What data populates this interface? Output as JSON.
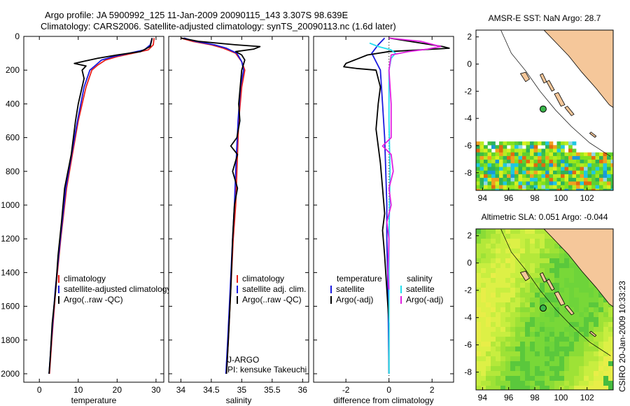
{
  "header": {
    "line1": "Argo profile: JA 5900992_125 11-Jan-2009 20090115_143 3.307S 98.639E",
    "line2": "Climatology: CARS2006. Satellite-adjusted climatology: synTS_20090113.nc (1.6d later)"
  },
  "colors": {
    "climatology": "#e8201b",
    "satellite": "#1a1adf",
    "argo": "#000000",
    "satellite_diff": "#22ddee",
    "argo_salinity_diff": "#e020e0",
    "land": "#f5c79a"
  },
  "chart_data": [
    {
      "type": "line",
      "id": "temperature",
      "xlabel": "temperature",
      "xlim": [
        -4,
        32
      ],
      "ylim": [
        2050,
        0
      ],
      "xticks": [
        0,
        10,
        20,
        30
      ],
      "yticks": [
        0,
        200,
        400,
        600,
        800,
        1000,
        1200,
        1400,
        1600,
        1800,
        2000
      ],
      "legend": [
        "climatology",
        "satellite-adjusted climatology",
        "Argo(..raw -QC)"
      ],
      "series": [
        {
          "name": "climatology",
          "points": [
            [
              29.5,
              10
            ],
            [
              29.3,
              50
            ],
            [
              28,
              80
            ],
            [
              24,
              100
            ],
            [
              20,
              120
            ],
            [
              17,
              140
            ],
            [
              15,
              170
            ],
            [
              13.5,
              200
            ],
            [
              12,
              300
            ],
            [
              10,
              500
            ],
            [
              8.5,
              700
            ],
            [
              7,
              900
            ],
            [
              5.5,
              1200
            ],
            [
              4.2,
              1500
            ],
            [
              3.2,
              1800
            ],
            [
              2.6,
              2000
            ]
          ]
        },
        {
          "name": "satellite-adjusted climatology",
          "points": [
            [
              29,
              10
            ],
            [
              28.5,
              50
            ],
            [
              27,
              80
            ],
            [
              23,
              100
            ],
            [
              19,
              120
            ],
            [
              16,
              140
            ],
            [
              14.5,
              170
            ],
            [
              13,
              200
            ],
            [
              11.5,
              300
            ],
            [
              9.8,
              500
            ],
            [
              8.3,
              700
            ],
            [
              6.8,
              900
            ],
            [
              5.4,
              1200
            ],
            [
              4.1,
              1500
            ],
            [
              3.1,
              1800
            ],
            [
              2.5,
              2000
            ]
          ]
        },
        {
          "name": "Argo(..raw -QC)",
          "points": [
            [
              29,
              10
            ],
            [
              28.5,
              60
            ],
            [
              26,
              90
            ],
            [
              20,
              110
            ],
            [
              15,
              130
            ],
            [
              12,
              145
            ],
            [
              9,
              160
            ],
            [
              12,
              175
            ],
            [
              11,
              200
            ],
            [
              11.5,
              250
            ],
            [
              11,
              300
            ],
            [
              10,
              400
            ],
            [
              9.3,
              500
            ],
            [
              8.2,
              700
            ],
            [
              6.5,
              900
            ],
            [
              5.7,
              1100
            ],
            [
              4.8,
              1300
            ],
            [
              4.2,
              1500
            ],
            [
              3.3,
              1700
            ],
            [
              2.8,
              1900
            ],
            [
              2.5,
              2000
            ]
          ]
        }
      ]
    },
    {
      "type": "line",
      "id": "salinity",
      "xlabel": "salinity",
      "xlim": [
        33.8,
        36.1
      ],
      "ylim": [
        2050,
        0
      ],
      "xticks": [
        34,
        34.5,
        35,
        35.5,
        36
      ],
      "legend": [
        "climatology",
        "satellite adj. clim.",
        "Argo(..raw -QC)"
      ],
      "annotations": [
        "J-ARGO",
        "PI: kensuke Takeuchi"
      ],
      "series": [
        {
          "name": "climatology",
          "points": [
            [
              34.0,
              10
            ],
            [
              34.2,
              30
            ],
            [
              34.5,
              50
            ],
            [
              34.7,
              70
            ],
            [
              34.9,
              100
            ],
            [
              35.0,
              150
            ],
            [
              35.05,
              200
            ],
            [
              35.0,
              300
            ],
            [
              34.95,
              500
            ],
            [
              34.92,
              800
            ],
            [
              34.9,
              1000
            ],
            [
              34.86,
              1200
            ],
            [
              34.82,
              1500
            ],
            [
              34.78,
              1800
            ],
            [
              34.75,
              2000
            ]
          ]
        },
        {
          "name": "satellite adj. clim.",
          "points": [
            [
              34.05,
              10
            ],
            [
              34.25,
              30
            ],
            [
              34.55,
              50
            ],
            [
              34.75,
              70
            ],
            [
              34.92,
              100
            ],
            [
              35.0,
              150
            ],
            [
              35.03,
              200
            ],
            [
              34.98,
              300
            ],
            [
              34.94,
              500
            ],
            [
              34.9,
              800
            ],
            [
              34.88,
              1000
            ],
            [
              34.85,
              1200
            ],
            [
              34.81,
              1500
            ],
            [
              34.77,
              1800
            ],
            [
              34.74,
              2000
            ]
          ]
        },
        {
          "name": "Argo(..raw -QC)",
          "points": [
            [
              34.0,
              10
            ],
            [
              34.3,
              30
            ],
            [
              34.9,
              50
            ],
            [
              35.3,
              60
            ],
            [
              35.2,
              75
            ],
            [
              34.9,
              90
            ],
            [
              35.0,
              110
            ],
            [
              35.05,
              140
            ],
            [
              35.0,
              200
            ],
            [
              34.95,
              400
            ],
            [
              34.97,
              500
            ],
            [
              34.92,
              600
            ],
            [
              34.82,
              650
            ],
            [
              34.93,
              700
            ],
            [
              34.85,
              800
            ],
            [
              34.93,
              900
            ],
            [
              34.88,
              1000
            ],
            [
              34.85,
              1200
            ],
            [
              34.82,
              1500
            ],
            [
              34.78,
              1800
            ],
            [
              34.75,
              2000
            ]
          ]
        }
      ]
    },
    {
      "type": "line",
      "id": "difference",
      "xlabel": "difference from climatology",
      "xlim": [
        -3.5,
        3.0
      ],
      "ylim": [
        2050,
        0
      ],
      "xticks": [
        -2,
        0,
        2
      ],
      "legend": [
        "temperature",
        "satellite",
        "Argo(-adj)",
        "salinity",
        "satellite",
        "Argo(-adj)"
      ],
      "series": [
        {
          "name": "temperature satellite",
          "points": [
            [
              -0.2,
              10
            ],
            [
              -0.5,
              50
            ],
            [
              -0.8,
              100
            ],
            [
              -0.6,
              150
            ],
            [
              -0.4,
              200
            ],
            [
              -0.3,
              400
            ],
            [
              -0.2,
              600
            ],
            [
              -0.15,
              800
            ],
            [
              -0.1,
              1000
            ],
            [
              -0.1,
              1200
            ],
            [
              -0.05,
              1500
            ],
            [
              0,
              2000
            ]
          ]
        },
        {
          "name": "temperature Argo(-adj)",
          "points": [
            [
              0,
              10
            ],
            [
              2.5,
              60
            ],
            [
              2.8,
              70
            ],
            [
              0,
              90
            ],
            [
              -1,
              110
            ],
            [
              -2,
              160
            ],
            [
              -2.1,
              180
            ],
            [
              -1.5,
              190
            ],
            [
              -0.6,
              200
            ],
            [
              -0.4,
              300
            ],
            [
              -0.5,
              400
            ],
            [
              -0.6,
              550
            ],
            [
              -0.5,
              650
            ],
            [
              -0.4,
              750
            ],
            [
              -0.3,
              900
            ],
            [
              -0.2,
              1050
            ],
            [
              -0.3,
              1150
            ],
            [
              -0.2,
              1300
            ],
            [
              -0.1,
              1500
            ],
            [
              0,
              1700
            ],
            [
              0,
              2000
            ]
          ]
        },
        {
          "name": "salinity satellite",
          "points": [
            [
              -0.9,
              40
            ],
            [
              -0.5,
              60
            ],
            [
              0.1,
              80
            ],
            [
              0.3,
              100
            ],
            [
              0.1,
              130
            ],
            [
              0,
              200
            ],
            [
              0,
              500
            ],
            [
              0.05,
              800
            ],
            [
              0,
              1200
            ],
            [
              0,
              2000
            ]
          ]
        },
        {
          "name": "salinity Argo(-adj)",
          "points": [
            [
              0,
              10
            ],
            [
              1.5,
              30
            ],
            [
              2.4,
              60
            ],
            [
              1.8,
              75
            ],
            [
              0.9,
              90
            ],
            [
              0.1,
              110
            ],
            [
              0,
              200
            ],
            [
              0.1,
              400
            ],
            [
              0.1,
              600
            ],
            [
              -0.3,
              650
            ],
            [
              0.1,
              700
            ],
            [
              0.2,
              800
            ],
            [
              0,
              900
            ],
            [
              0.1,
              1000
            ],
            [
              -0.1,
              1100
            ],
            [
              0,
              1200
            ],
            [
              -0.05,
              1400
            ],
            [
              0,
              1500
            ]
          ]
        }
      ]
    },
    {
      "type": "heatmap",
      "id": "sst-map",
      "title": "AMSR-E SST: NaN Argo: 28.7",
      "xticks": [
        94,
        96,
        98,
        100,
        102
      ],
      "yticks": [
        2,
        0,
        -2,
        -4,
        -6,
        -8
      ],
      "xlim": [
        93.5,
        104
      ],
      "ylim": [
        -9.3,
        2.5
      ],
      "argo_location": [
        98.639,
        -3.307
      ]
    },
    {
      "type": "heatmap",
      "id": "sla-map",
      "title": "Altimetric SLA: 0.051 Argo: -0.044",
      "xticks": [
        94,
        96,
        98,
        100,
        102
      ],
      "yticks": [
        2,
        0,
        -2,
        -4,
        -6,
        -8
      ],
      "xlim": [
        93.5,
        104
      ],
      "ylim": [
        -9.3,
        2.5
      ],
      "argo_location": [
        98.639,
        -3.307
      ]
    }
  ],
  "footer": {
    "credit": "CSIRO 20-Jan-2009 10:33:23"
  }
}
